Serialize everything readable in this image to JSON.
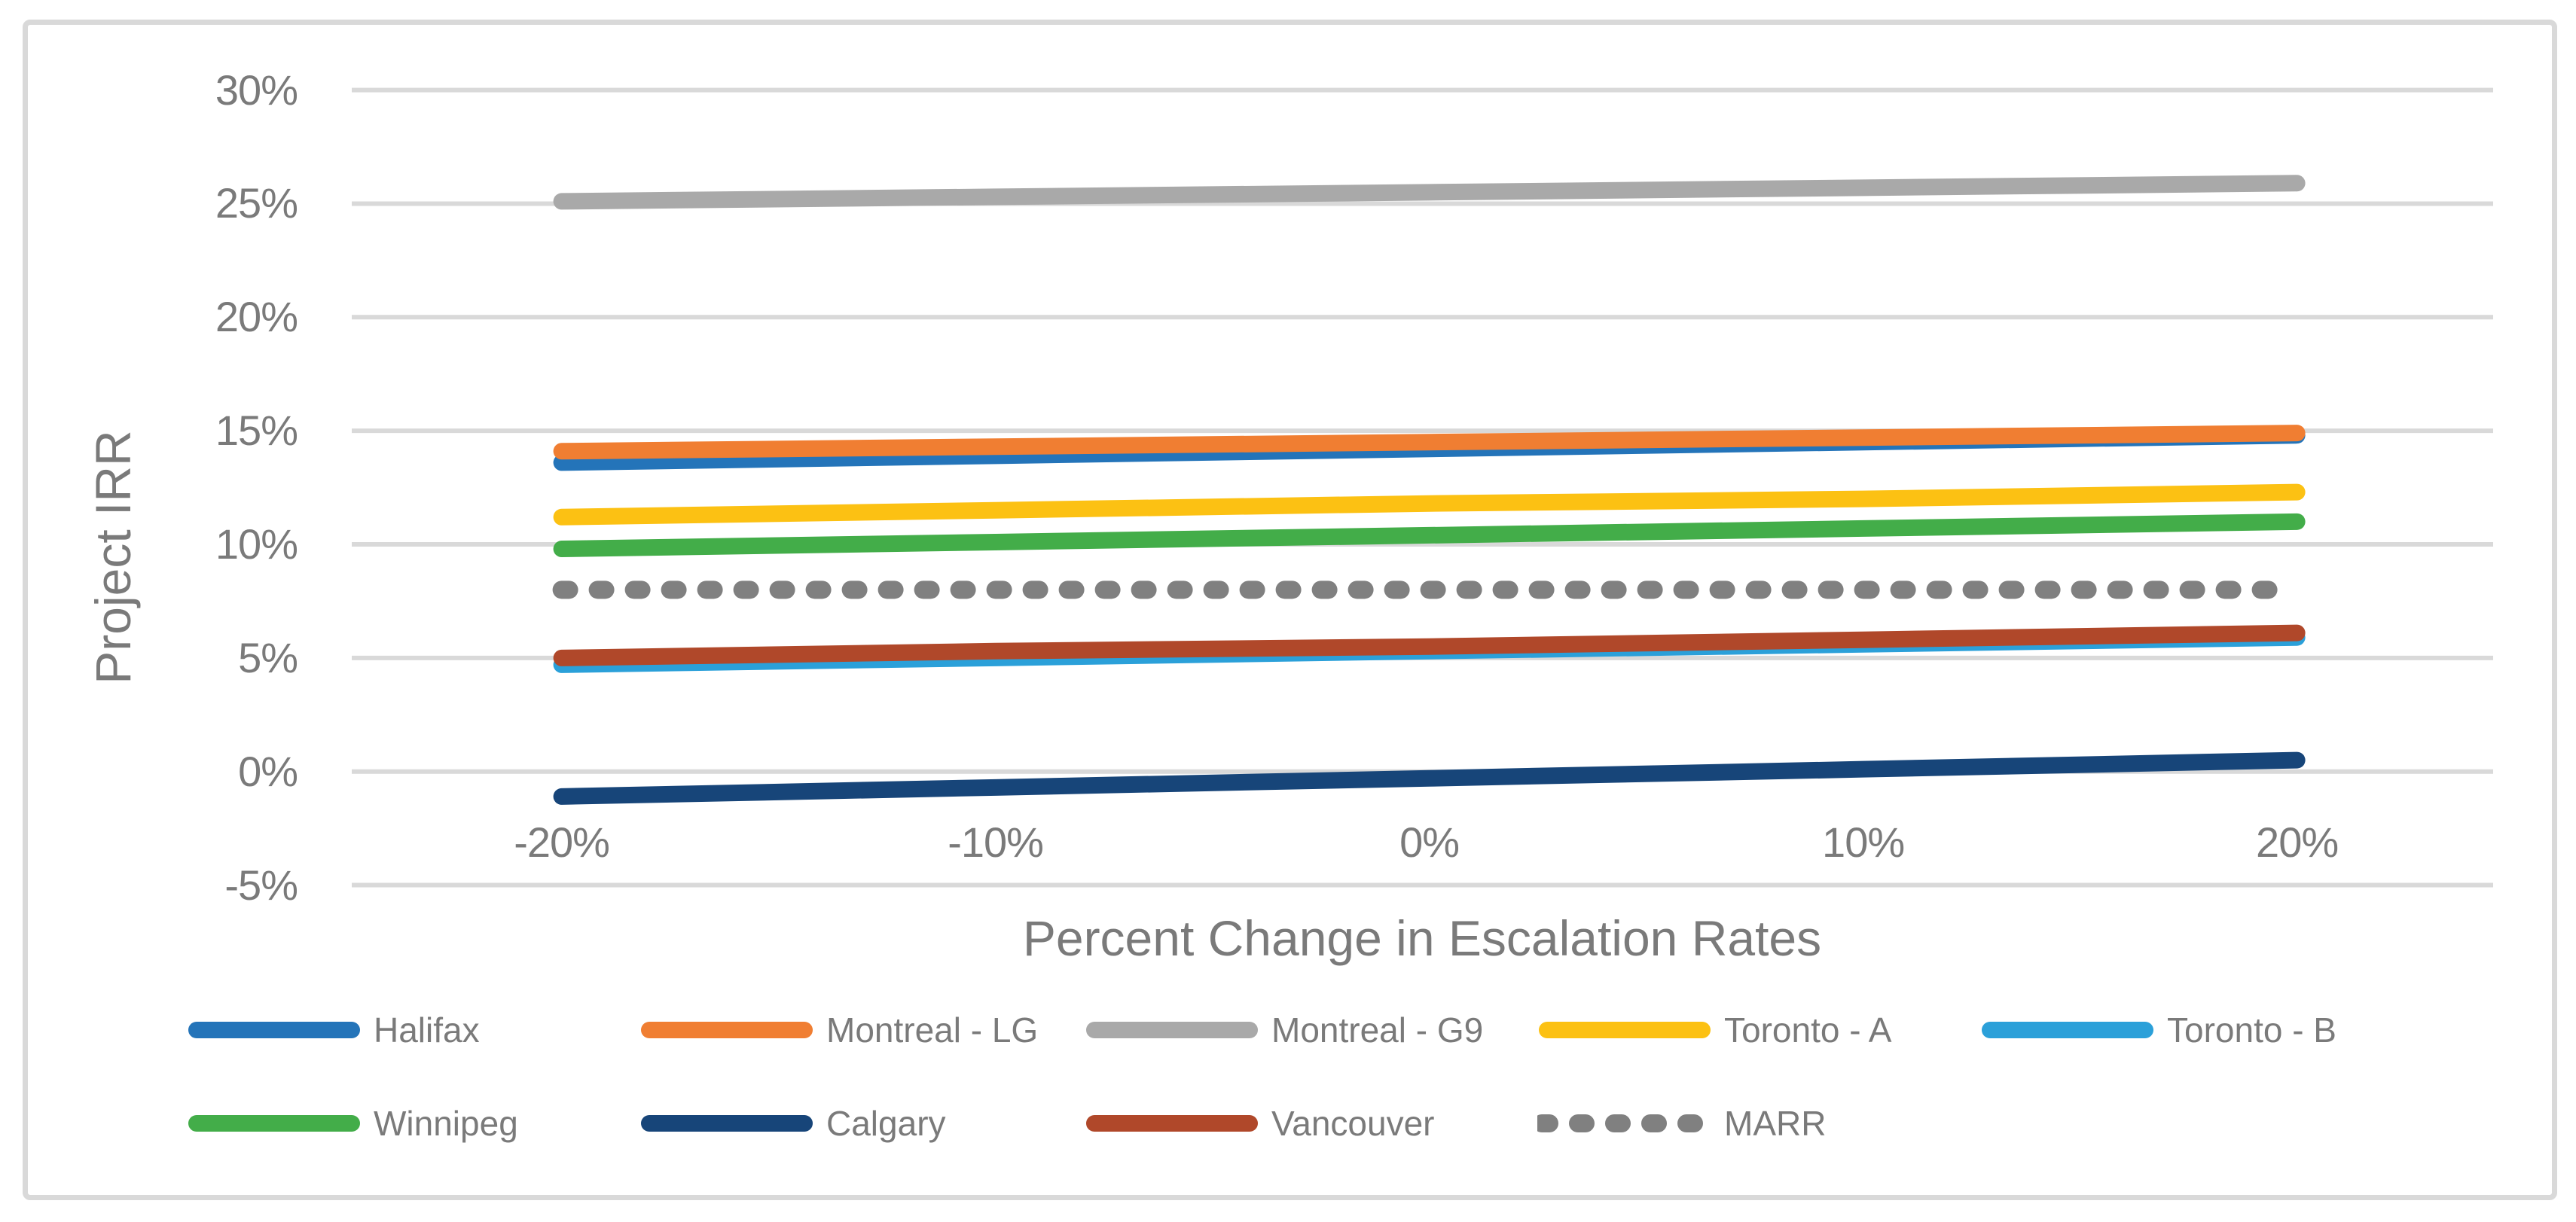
{
  "chart_data": {
    "type": "line",
    "title": "",
    "xlabel": "Percent Change in Escalation Rates",
    "ylabel": "Project IRR",
    "x_tick_labels": [
      "-20%",
      "-10%",
      "0%",
      "10%",
      "20%"
    ],
    "x_values": [
      -20,
      -10,
      0,
      10,
      20
    ],
    "y_ticks": [
      30,
      25,
      20,
      15,
      10,
      5,
      0,
      -5
    ],
    "y_tick_labels": [
      "30%",
      "25%",
      "20%",
      "15%",
      "10%",
      "5%",
      "0%",
      "-5%"
    ],
    "ylim": [
      -5,
      30
    ],
    "grid": true,
    "legend_position": "bottom",
    "axis_text_color": "#7A7A7A",
    "gridline_color": "#D9D9D9",
    "frame_color": "#D9D9D9",
    "series": [
      {
        "name": "Halifax",
        "color": "#2474B9",
        "dash": false,
        "values": [
          13.6,
          13.9,
          14.2,
          14.5,
          14.8
        ]
      },
      {
        "name": "Montreal - LG",
        "color": "#F07E32",
        "dash": false,
        "values": [
          14.1,
          14.3,
          14.5,
          14.7,
          14.9
        ]
      },
      {
        "name": "Montreal - G9",
        "color": "#A9A9A9",
        "dash": false,
        "values": [
          25.1,
          25.3,
          25.5,
          25.7,
          25.9
        ]
      },
      {
        "name": "Toronto - A",
        "color": "#FCC113",
        "dash": false,
        "values": [
          11.2,
          11.5,
          11.8,
          12.0,
          12.3
        ]
      },
      {
        "name": "Toronto - B",
        "color": "#2BA0D9",
        "dash": false,
        "values": [
          4.7,
          5.0,
          5.3,
          5.6,
          5.9
        ]
      },
      {
        "name": "Winnipeg",
        "color": "#43AD49",
        "dash": false,
        "values": [
          9.8,
          10.1,
          10.4,
          10.7,
          11.0
        ]
      },
      {
        "name": "Calgary",
        "color": "#174579",
        "dash": false,
        "values": [
          -1.1,
          -0.7,
          -0.3,
          0.1,
          0.5
        ]
      },
      {
        "name": "Vancouver",
        "color": "#B0482A",
        "dash": false,
        "values": [
          5.0,
          5.3,
          5.5,
          5.8,
          6.1
        ]
      },
      {
        "name": "MARR",
        "color": "#808080",
        "dash": true,
        "values": [
          8,
          8,
          8,
          8,
          8
        ]
      }
    ],
    "legend_rows": [
      [
        "Halifax",
        "Montreal - LG",
        "Montreal - G9",
        "Toronto - A",
        "Toronto - B"
      ],
      [
        "Winnipeg",
        "Calgary",
        "Vancouver",
        "MARR"
      ]
    ]
  }
}
